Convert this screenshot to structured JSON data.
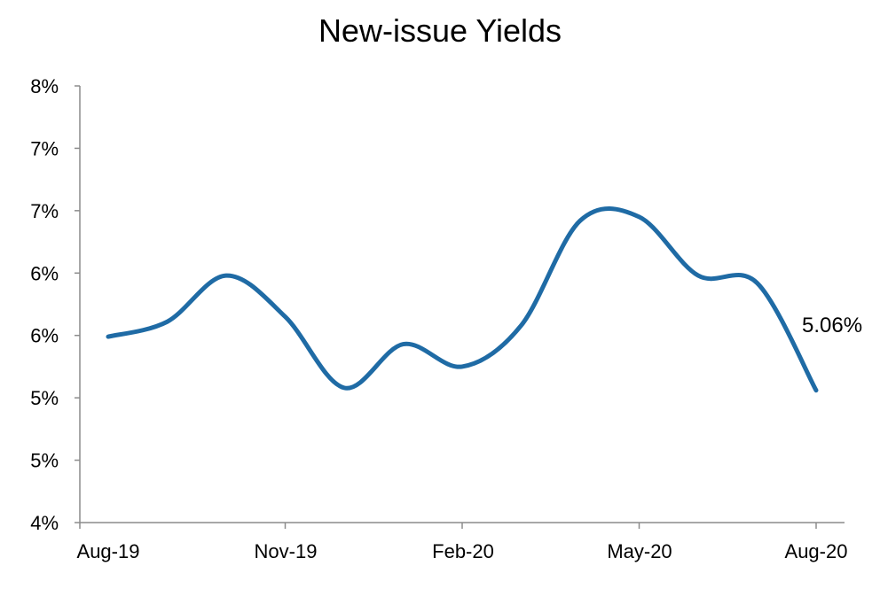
{
  "chart_data": {
    "type": "line",
    "title": "New-issue Yields",
    "xlabel": "",
    "ylabel": "",
    "x_tick_labels": [
      "Aug-19",
      "Nov-19",
      "Feb-20",
      "May-20",
      "Aug-20"
    ],
    "y_tick_labels": [
      "4%",
      "5%",
      "5%",
      "6%",
      "6%",
      "7%",
      "7%",
      "8%"
    ],
    "y_ticks": [
      4.0,
      4.5,
      5.0,
      5.5,
      6.0,
      6.5,
      7.0,
      7.5
    ],
    "ylim": [
      4.0,
      7.5
    ],
    "grid": false,
    "legend": "none",
    "smoothed": true,
    "x": [
      "Aug-19",
      "Sep-19",
      "Oct-19",
      "Nov-19",
      "Dec-19",
      "Jan-20",
      "Feb-20",
      "Mar-20",
      "Apr-20",
      "May-20",
      "Jun-20",
      "Jul-20",
      "Aug-20"
    ],
    "series": [
      {
        "values": [
          5.49,
          5.61,
          5.98,
          5.65,
          5.08,
          5.43,
          5.25,
          5.58,
          6.42,
          6.45,
          5.98,
          5.92,
          5.06
        ],
        "color": "#1f6ba5"
      }
    ],
    "annotation": "5.06%"
  }
}
